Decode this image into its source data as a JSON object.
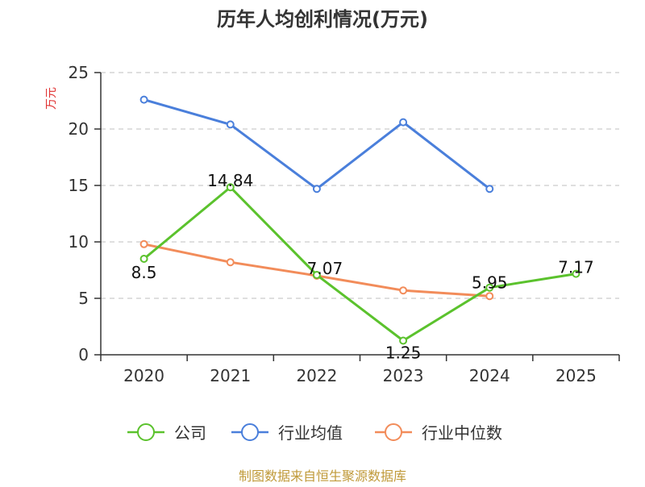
{
  "chart_data": {
    "type": "line",
    "title": "历年人均创利情况(万元)",
    "ylabel": "万元",
    "categories": [
      "2020",
      "2021",
      "2022",
      "2023",
      "2024",
      "2025"
    ],
    "y_ticks": [
      "0",
      "5",
      "10",
      "15",
      "20",
      "25"
    ],
    "ylim": [
      0,
      25
    ],
    "grid": true,
    "legend_position": "bottom",
    "series": [
      {
        "name": "公司",
        "color": "#5bc22d",
        "values": [
          8.5,
          14.84,
          7.07,
          1.25,
          5.95,
          7.17
        ],
        "labels": [
          "8.5",
          "14.84",
          "7.07",
          "1.25",
          "5.95",
          "7.17"
        ]
      },
      {
        "name": "行业均值",
        "color": "#4a7fdb",
        "values": [
          22.6,
          20.4,
          14.7,
          20.6,
          14.7,
          null
        ]
      },
      {
        "name": "行业中位数",
        "color": "#f28c5a",
        "values": [
          9.8,
          8.2,
          7.0,
          5.7,
          5.2,
          null
        ]
      }
    ]
  },
  "source_text": "制图数据来自恒生聚源数据库",
  "colors": {
    "ylabel": "#e03030",
    "source": "#c09a3a",
    "grid": "#cccccc",
    "axis": "#333333"
  }
}
